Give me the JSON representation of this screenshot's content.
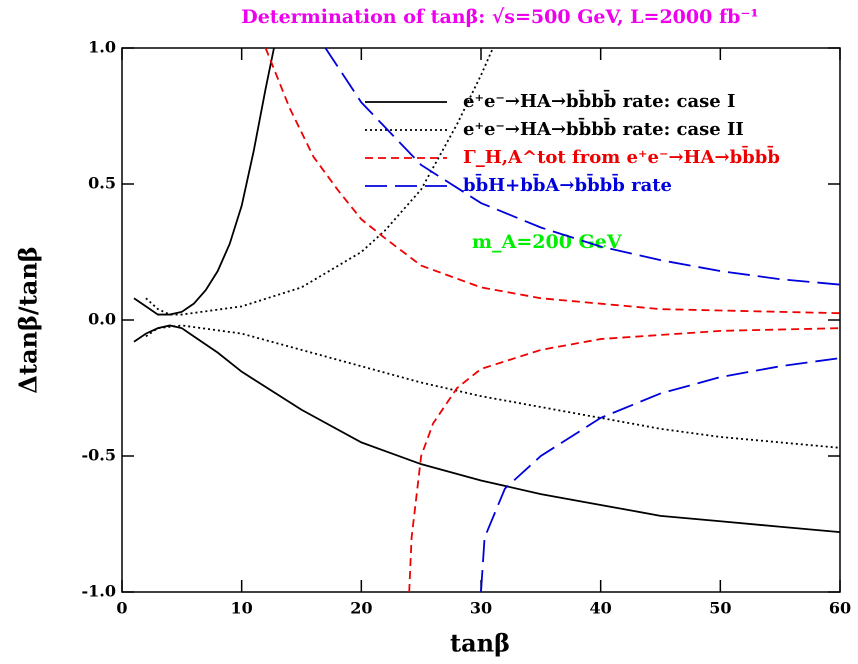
{
  "chart_data": {
    "type": "line",
    "title": "Determination of tanβ: √s=500 GeV, L=2000 fb⁻¹",
    "xlabel": "tanβ",
    "ylabel": "Δtanβ/tanβ",
    "annotation": "m_A=200 GeV",
    "annotation_color": "#00ee00",
    "title_color": "#ee00ee",
    "xlim": [
      0,
      60
    ],
    "ylim": [
      -1,
      1
    ],
    "xticks": [
      0,
      10,
      20,
      30,
      40,
      50,
      60
    ],
    "yticks": [
      {
        "value": -1,
        "label": "-1.0"
      },
      {
        "value": -0.5,
        "label": "-0.5"
      },
      {
        "value": 0,
        "label": "0.0"
      },
      {
        "value": 0.5,
        "label": "0.5"
      },
      {
        "value": 1,
        "label": "1.0"
      }
    ],
    "legend": "upper right",
    "series": [
      {
        "name": "e⁺e⁻→HA→bb̄bb̄ rate: case I",
        "color": "#000000",
        "dash": "none",
        "branches": [
          {
            "x": [
              1,
              2,
              3,
              4,
              5,
              6,
              7,
              8,
              9,
              10,
              11,
              12,
              12.7
            ],
            "values": [
              0.08,
              0.05,
              0.02,
              0.02,
              0.03,
              0.06,
              0.11,
              0.18,
              0.28,
              0.42,
              0.62,
              0.85,
              1.0
            ]
          },
          {
            "x": [
              1,
              2,
              3,
              4,
              5,
              6,
              8,
              10,
              15,
              20,
              25,
              30,
              35,
              40,
              45,
              50,
              55,
              60
            ],
            "values": [
              -0.08,
              -0.05,
              -0.03,
              -0.02,
              -0.03,
              -0.06,
              -0.12,
              -0.19,
              -0.33,
              -0.45,
              -0.53,
              -0.59,
              -0.64,
              -0.68,
              -0.72,
              -0.74,
              -0.76,
              -0.78
            ]
          }
        ]
      },
      {
        "name": "e⁺e⁻→HA→bb̄bb̄ rate: case II",
        "color": "#000000",
        "dash": "2 3",
        "branches": [
          {
            "x": [
              2,
              3,
              4,
              5,
              10,
              15,
              20,
              22,
              25,
              28,
              30,
              31
            ],
            "values": [
              0.08,
              0.04,
              0.02,
              0.02,
              0.05,
              0.12,
              0.25,
              0.33,
              0.48,
              0.72,
              0.9,
              1.0
            ]
          },
          {
            "x": [
              2,
              3,
              5,
              10,
              15,
              20,
              25,
              30,
              35,
              40,
              45,
              50,
              55,
              60
            ],
            "values": [
              -0.06,
              -0.03,
              -0.02,
              -0.05,
              -0.11,
              -0.17,
              -0.23,
              -0.28,
              -0.32,
              -0.36,
              -0.4,
              -0.43,
              -0.45,
              -0.47
            ]
          }
        ]
      },
      {
        "name": "Γ_H,A^tot from e⁺e⁻→HA→bb̄bb̄",
        "color": "#ee0000",
        "dash": "8 5",
        "branches": [
          {
            "x": [
              12,
              14,
              16,
              18,
              20,
              22,
              25,
              30,
              35,
              40,
              45,
              50,
              55,
              60
            ],
            "values": [
              1.0,
              0.78,
              0.6,
              0.48,
              0.37,
              0.3,
              0.2,
              0.12,
              0.08,
              0.06,
              0.04,
              0.035,
              0.03,
              0.025
            ]
          },
          {
            "x": [
              24,
              24.2,
              25,
              26,
              28,
              30,
              35,
              40,
              50,
              60
            ],
            "values": [
              -1.0,
              -0.8,
              -0.5,
              -0.38,
              -0.25,
              -0.18,
              -0.11,
              -0.07,
              -0.04,
              -0.03
            ]
          }
        ]
      },
      {
        "name": "bb̄H+bb̄A→bb̄bb̄ rate",
        "color": "#0000dd",
        "dash": "22 8",
        "branches": [
          {
            "x": [
              17,
              20,
              25,
              30,
              35,
              40,
              45,
              50,
              55,
              60
            ],
            "values": [
              1.0,
              0.8,
              0.57,
              0.43,
              0.34,
              0.27,
              0.22,
              0.18,
              0.15,
              0.13
            ]
          },
          {
            "x": [
              30,
              30.3,
              32,
              35,
              40,
              45,
              50,
              55,
              60
            ],
            "values": [
              -1.0,
              -0.8,
              -0.62,
              -0.5,
              -0.36,
              -0.27,
              -0.21,
              -0.17,
              -0.14
            ]
          }
        ]
      }
    ]
  }
}
